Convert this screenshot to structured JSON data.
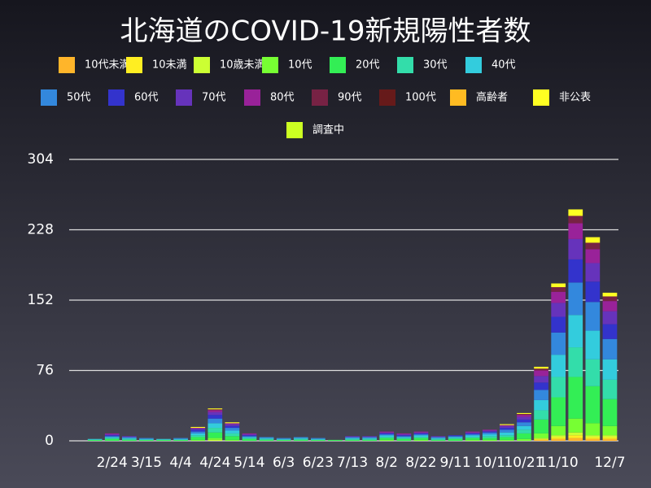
{
  "chart_data": {
    "type": "stacked-bar",
    "title": "北海道のCOVID-19新規陽性者数",
    "legend": "top",
    "grid": true,
    "categories": [
      null,
      null,
      "2/24",
      null,
      "3/15",
      null,
      "4/4",
      null,
      "4/24",
      null,
      "5/14",
      null,
      "6/3",
      null,
      "6/23",
      null,
      "7/13",
      null,
      "8/2",
      null,
      "8/22",
      null,
      "9/11",
      null,
      "10/1",
      null,
      "10/21",
      null,
      "11/10",
      null,
      null,
      "12/7"
    ],
    "ylim": [
      0,
      304
    ],
    "yticks": [
      0,
      76,
      152,
      228,
      304
    ],
    "series": [
      {
        "name": "10代未満",
        "color": "#ffb52a",
        "values": [
          0,
          0,
          0,
          0,
          0,
          0,
          0,
          0,
          0,
          0,
          0,
          0,
          0,
          0,
          0,
          0,
          0,
          0,
          0,
          0,
          0,
          0,
          0,
          0,
          0,
          0,
          0,
          1,
          2,
          3,
          2,
          2
        ]
      },
      {
        "name": "10未満",
        "color": "#ffee22",
        "values": [
          0,
          0,
          0,
          0,
          0,
          0,
          0,
          0,
          0,
          0,
          0,
          0,
          0,
          0,
          0,
          0,
          0,
          0,
          0,
          0,
          0,
          0,
          0,
          0,
          0,
          0,
          0,
          1,
          2,
          3,
          2,
          2
        ]
      },
      {
        "name": "10歳未満",
        "color": "#ccff33",
        "values": [
          0,
          0,
          0,
          0,
          0,
          0,
          0,
          0,
          1,
          0,
          0,
          0,
          0,
          0,
          0,
          0,
          0,
          0,
          0,
          0,
          0,
          0,
          0,
          0,
          0,
          0,
          0,
          1,
          2,
          3,
          2,
          2
        ]
      },
      {
        "name": "10代",
        "color": "#77ff33",
        "values": [
          0,
          0,
          0,
          0,
          0,
          0,
          0,
          1,
          2,
          1,
          0,
          0,
          0,
          0,
          0,
          0,
          0,
          0,
          1,
          0,
          1,
          0,
          0,
          1,
          1,
          1,
          2,
          5,
          10,
          15,
          13,
          10
        ]
      },
      {
        "name": "20代",
        "color": "#33ee55",
        "values": [
          0,
          1,
          2,
          1,
          1,
          1,
          1,
          3,
          6,
          4,
          2,
          1,
          1,
          1,
          1,
          1,
          1,
          1,
          2,
          2,
          2,
          1,
          2,
          2,
          2,
          3,
          6,
          15,
          31,
          45,
          40,
          29
        ]
      },
      {
        "name": "30代",
        "color": "#33ddaa",
        "values": [
          0,
          0,
          1,
          1,
          0,
          0,
          0,
          2,
          5,
          3,
          1,
          1,
          0,
          1,
          0,
          0,
          1,
          1,
          1,
          1,
          1,
          1,
          1,
          1,
          2,
          2,
          4,
          10,
          22,
          32,
          29,
          21
        ]
      },
      {
        "name": "40代",
        "color": "#33ccdd",
        "values": [
          0,
          1,
          1,
          1,
          1,
          1,
          1,
          2,
          5,
          3,
          1,
          1,
          1,
          1,
          1,
          0,
          1,
          1,
          2,
          1,
          2,
          1,
          1,
          2,
          2,
          3,
          4,
          11,
          24,
          35,
          31,
          22
        ]
      },
      {
        "name": "50代",
        "color": "#3388dd",
        "values": [
          0,
          0,
          1,
          1,
          1,
          0,
          1,
          2,
          5,
          3,
          1,
          1,
          1,
          1,
          1,
          0,
          1,
          1,
          1,
          1,
          1,
          1,
          1,
          1,
          2,
          3,
          4,
          11,
          24,
          35,
          31,
          22
        ]
      },
      {
        "name": "60代",
        "color": "#3333cc",
        "values": [
          0,
          0,
          1,
          0,
          0,
          0,
          0,
          2,
          4,
          2,
          1,
          0,
          0,
          0,
          0,
          0,
          0,
          0,
          1,
          1,
          1,
          0,
          1,
          1,
          1,
          2,
          3,
          8,
          17,
          25,
          22,
          16
        ]
      },
      {
        "name": "70代",
        "color": "#6633bb",
        "values": [
          0,
          0,
          1,
          1,
          0,
          0,
          0,
          1,
          3,
          2,
          1,
          0,
          0,
          0,
          0,
          0,
          1,
          1,
          1,
          1,
          1,
          1,
          0,
          1,
          1,
          2,
          3,
          7,
          15,
          22,
          20,
          14
        ]
      },
      {
        "name": "80代",
        "color": "#992299",
        "values": [
          0,
          0,
          1,
          0,
          0,
          0,
          0,
          1,
          2,
          1,
          1,
          0,
          0,
          0,
          0,
          0,
          0,
          0,
          1,
          1,
          1,
          0,
          0,
          1,
          1,
          1,
          2,
          6,
          12,
          17,
          15,
          11
        ]
      },
      {
        "name": "90代",
        "color": "#772244",
        "values": [
          0,
          0,
          0,
          0,
          0,
          0,
          0,
          0,
          1,
          0,
          0,
          0,
          0,
          0,
          0,
          0,
          0,
          0,
          0,
          0,
          0,
          0,
          0,
          0,
          0,
          0,
          1,
          2,
          5,
          8,
          7,
          5
        ]
      },
      {
        "name": "100代",
        "color": "#661a1a",
        "values": [
          0,
          0,
          0,
          0,
          0,
          0,
          0,
          0,
          0,
          0,
          0,
          0,
          0,
          0,
          0,
          0,
          0,
          0,
          0,
          0,
          0,
          0,
          0,
          0,
          0,
          0,
          0,
          0,
          0,
          0,
          0,
          0
        ]
      },
      {
        "name": "高齢者",
        "color": "#ffbb22",
        "values": [
          0,
          0,
          0,
          0,
          0,
          0,
          0,
          0,
          0,
          0,
          0,
          0,
          0,
          0,
          0,
          0,
          0,
          0,
          0,
          0,
          0,
          0,
          0,
          0,
          0,
          0,
          0,
          0,
          0,
          0,
          0,
          0
        ]
      },
      {
        "name": "非公表",
        "color": "#ffff22",
        "values": [
          0,
          0,
          0,
          0,
          0,
          0,
          0,
          1,
          1,
          1,
          0,
          0,
          0,
          0,
          0,
          0,
          0,
          0,
          0,
          0,
          0,
          0,
          0,
          0,
          0,
          1,
          1,
          2,
          4,
          7,
          6,
          4
        ]
      },
      {
        "name": "調査中",
        "color": "#ccff22",
        "values": [
          0,
          0,
          0,
          0,
          0,
          0,
          0,
          0,
          0,
          0,
          0,
          0,
          0,
          0,
          0,
          0,
          0,
          0,
          0,
          0,
          0,
          0,
          0,
          0,
          0,
          0,
          0,
          0,
          0,
          0,
          0,
          0
        ]
      }
    ]
  }
}
